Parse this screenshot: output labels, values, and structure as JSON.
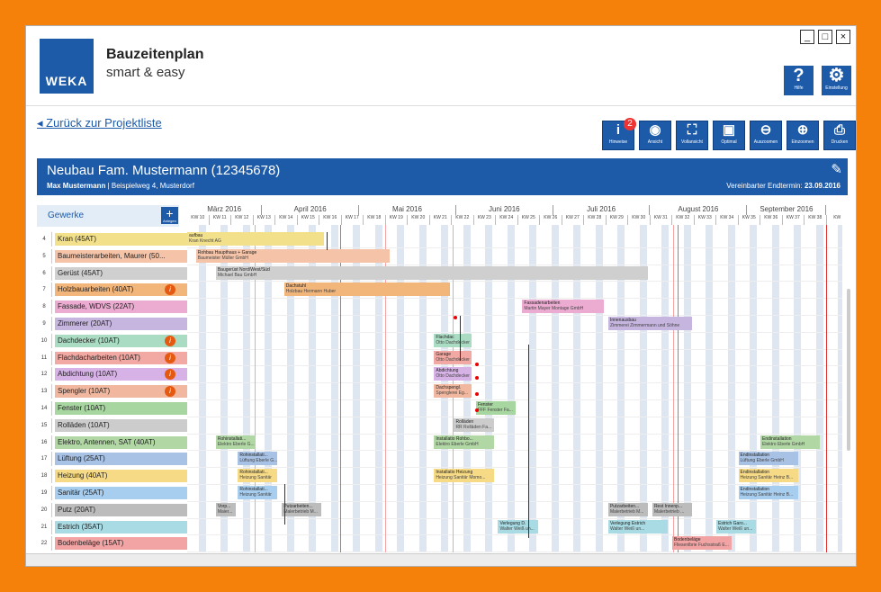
{
  "app": {
    "title": "Bauzeitenplan",
    "subtitle": "smart & easy",
    "logo": "WEKA"
  },
  "window_controls": {
    "minimize": "_",
    "maximize": "□",
    "close": "×"
  },
  "top_buttons": [
    {
      "name": "help",
      "glyph": "?",
      "label": "Hilfe"
    },
    {
      "name": "settings",
      "glyph": "⚙",
      "label": "Einstellung"
    }
  ],
  "back_link": "Zurück zur Projektliste",
  "toolbar": [
    {
      "name": "info",
      "glyph": "i",
      "label": "Hinweise",
      "badge": "2"
    },
    {
      "name": "view",
      "glyph": "◉",
      "label": "Ansicht"
    },
    {
      "name": "full-view",
      "glyph": "⛶",
      "label": "Vollansicht"
    },
    {
      "name": "optimal",
      "glyph": "▣",
      "label": "Optimal"
    },
    {
      "name": "zoom-out",
      "glyph": "⊖",
      "label": "Auszoomen"
    },
    {
      "name": "zoom-in",
      "glyph": "⊕",
      "label": "Einzoomen"
    },
    {
      "name": "print",
      "glyph": "⎙",
      "label": "Drucken"
    }
  ],
  "project": {
    "title": "Neubau Fam. Mustermann (12345678)",
    "owner": "Max Mustermann",
    "address": "| Beispielweg 4, Musterdorf",
    "end_label": "Vereinbarter Endtermin:",
    "end_date": "23.09.2016"
  },
  "gewerke_header": "Gewerke",
  "add_label": "Anlegen",
  "rows": [
    {
      "n": "4",
      "label": "Kran (45AT)",
      "color": "#f3e08a",
      "warn": false
    },
    {
      "n": "5",
      "label": "Baumeisterarbeiten, Maurer (50...",
      "color": "#f4c3a8",
      "warn": false
    },
    {
      "n": "6",
      "label": "Gerüst (45AT)",
      "color": "#cfcfcf",
      "warn": false
    },
    {
      "n": "7",
      "label": "Holzbauarbeiten (40AT)",
      "color": "#f2b57a",
      "warn": true
    },
    {
      "n": "8",
      "label": "Fassade, WDVS (22AT)",
      "color": "#ecacd2",
      "warn": false
    },
    {
      "n": "9",
      "label": "Zimmerer (20AT)",
      "color": "#c6b5df",
      "warn": false
    },
    {
      "n": "10",
      "label": "Dachdecker (10AT)",
      "color": "#a9dcc2",
      "warn": true
    },
    {
      "n": "11",
      "label": "Flachdacharbeiten (10AT)",
      "color": "#f2a9a3",
      "warn": true
    },
    {
      "n": "12",
      "label": "Abdichtung (10AT)",
      "color": "#d7b2e6",
      "warn": true
    },
    {
      "n": "13",
      "label": "Spengler (10AT)",
      "color": "#f1b89f",
      "warn": true
    },
    {
      "n": "14",
      "label": "Fenster (10AT)",
      "color": "#a7d6a0",
      "warn": false
    },
    {
      "n": "15",
      "label": "Rolläden (10AT)",
      "color": "#cccccc",
      "warn": false
    },
    {
      "n": "16",
      "label": "Elektro, Antennen, SAT (40AT)",
      "color": "#b1d8a4",
      "warn": false
    },
    {
      "n": "17",
      "label": "Lüftung (25AT)",
      "color": "#a8c2e6",
      "warn": false
    },
    {
      "n": "18",
      "label": "Heizung (40AT)",
      "color": "#f6da86",
      "warn": false
    },
    {
      "n": "19",
      "label": "Sanitär (25AT)",
      "color": "#a7cdef",
      "warn": false
    },
    {
      "n": "20",
      "label": "Putz (20AT)",
      "color": "#bcbcbc",
      "warn": false
    },
    {
      "n": "21",
      "label": "Estrich (35AT)",
      "color": "#a8dbe3",
      "warn": false
    },
    {
      "n": "22",
      "label": "Bodenbeläge (15AT)",
      "color": "#f2a3a3",
      "warn": false
    }
  ],
  "months": [
    "März 2016",
    "April 2016",
    "Mai 2016",
    "Juni 2016",
    "Juli 2016",
    "August 2016",
    "September 2016"
  ],
  "weeks": [
    "KW 10",
    "KW 11",
    "KW 12",
    "KW 13",
    "KW 14",
    "KW 15",
    "KW 16",
    "KW 17",
    "KW 18",
    "KW 19",
    "KW 20",
    "KW 21",
    "KW 22",
    "KW 23",
    "KW 24",
    "KW 25",
    "KW 26",
    "KW 27",
    "KW 28",
    "KW 29",
    "KW 30",
    "KW 31",
    "KW 32",
    "KW 33",
    "KW 34",
    "KW 35",
    "KW 36",
    "KW 37",
    "KW 38",
    "KW"
  ],
  "tasks": [
    {
      "row": 0,
      "title": "aufbau",
      "sub": "Kran Knecht AG",
      "start": 0,
      "len": 6.2,
      "color": "#f3e08a"
    },
    {
      "row": 1,
      "title": "Rohbau Haupthaus + Garage",
      "sub": "Baumeister Müller GmbH",
      "start": 0.4,
      "len": 8.8,
      "color": "#f4c3a8"
    },
    {
      "row": 2,
      "title": "Baugerüst Nord/West/Süd",
      "sub": "Michael Bau GmbH",
      "start": 1.3,
      "len": 19.6,
      "color": "#cfcfcf"
    },
    {
      "row": 3,
      "title": "Dachstuhl",
      "sub": "Holzbau Hermann Huber",
      "start": 4.4,
      "len": 7.5,
      "color": "#f2b57a"
    },
    {
      "row": 4,
      "title": "Fassadenarbeiten",
      "sub": "Martin Mayer Montage GmbH",
      "start": 15.2,
      "len": 3.7,
      "color": "#ecacd2"
    },
    {
      "row": 5,
      "title": "Innenausbau",
      "sub": "Zimmerei Zimmermann und Söhne",
      "start": 19.1,
      "len": 3.8,
      "color": "#c6b5df"
    },
    {
      "row": 6,
      "title": "Flachdac",
      "sub": "Otto Dachdecker",
      "start": 11.2,
      "len": 1.7,
      "color": "#a9dcc2"
    },
    {
      "row": 7,
      "title": "Garage",
      "sub": "Otto Dachdecker",
      "start": 11.2,
      "len": 1.7,
      "color": "#f2a9a3"
    },
    {
      "row": 8,
      "title": "Abdichtung",
      "sub": "Otto Dachdecker",
      "start": 11.2,
      "len": 1.7,
      "color": "#d7b2e6"
    },
    {
      "row": 9,
      "title": "Dachspengl.",
      "sub": "Spenglerei Eg...",
      "start": 11.2,
      "len": 1.7,
      "color": "#f1b89f"
    },
    {
      "row": 10,
      "title": "Fenster",
      "sub": "FFF Fenster Fa...",
      "start": 13.1,
      "len": 1.8,
      "color": "#a7d6a0"
    },
    {
      "row": 11,
      "title": "Rolläden",
      "sub": "RR Rolläden Fa...",
      "start": 12.1,
      "len": 1.8,
      "color": "#cccccc"
    },
    {
      "row": 12,
      "title": "Rohinstallati...",
      "sub": "Elektro Eberle G...",
      "start": 1.3,
      "len": 1.8,
      "color": "#b1d8a4"
    },
    {
      "row": 12,
      "title": "Installatio Rohbo...",
      "sub": "Elektro Eberle GmbH",
      "start": 11.2,
      "len": 2.7,
      "color": "#b1d8a4"
    },
    {
      "row": 12,
      "title": "Endinstallation",
      "sub": "Elektro Eberle GmbH",
      "start": 26.0,
      "len": 2.7,
      "color": "#b1d8a4"
    },
    {
      "row": 13,
      "title": "Rohinstallati...",
      "sub": "Lüftung Eberle G...",
      "start": 2.3,
      "len": 1.8,
      "color": "#a8c2e6"
    },
    {
      "row": 13,
      "title": "Endinstallation",
      "sub": "Lüftung Eberle GmbH",
      "start": 25.0,
      "len": 2.7,
      "color": "#a8c2e6"
    },
    {
      "row": 14,
      "title": "Rohinstallati...",
      "sub": "Heizung Sanitär",
      "start": 2.3,
      "len": 1.8,
      "color": "#f6da86"
    },
    {
      "row": 14,
      "title": "Installatio Heizung",
      "sub": "Heizung Sanitär Momo...",
      "start": 11.2,
      "len": 2.7,
      "color": "#f6da86"
    },
    {
      "row": 14,
      "title": "Endinstallation",
      "sub": "Heizung Sanitär Heinz B...",
      "start": 25.0,
      "len": 2.7,
      "color": "#f6da86"
    },
    {
      "row": 15,
      "title": "Rohinstallati...",
      "sub": "Heizung Sanitär",
      "start": 2.3,
      "len": 1.8,
      "color": "#a7cdef"
    },
    {
      "row": 15,
      "title": "Endinstallation",
      "sub": "Heizung Sanitär Heinz B...",
      "start": 25.0,
      "len": 2.7,
      "color": "#a7cdef"
    },
    {
      "row": 16,
      "title": "Vorp...",
      "sub": "Maier...",
      "start": 1.3,
      "len": 0.9,
      "color": "#bcbcbc"
    },
    {
      "row": 16,
      "title": "Putzarbeiten...",
      "sub": "Malerbetrieb M...",
      "start": 4.3,
      "len": 1.8,
      "color": "#bcbcbc"
    },
    {
      "row": 16,
      "title": "Putzarbeiten...",
      "sub": "Malerbetrieb M...",
      "start": 19.1,
      "len": 1.8,
      "color": "#bcbcbc"
    },
    {
      "row": 16,
      "title": "Rest Innenp...",
      "sub": "Malerbetrieb ...",
      "start": 21.1,
      "len": 1.8,
      "color": "#bcbcbc"
    },
    {
      "row": 17,
      "title": "Verlegung D.",
      "sub": "Walter Weiß un...",
      "start": 14.1,
      "len": 1.8,
      "color": "#a8dbe3"
    },
    {
      "row": 17,
      "title": "Verlegung Estrich",
      "sub": "Walter Weiß un...",
      "start": 19.1,
      "len": 2.7,
      "color": "#a8dbe3"
    },
    {
      "row": 17,
      "title": "Estrich Garo...",
      "sub": "Walter Weiß un...",
      "start": 24.0,
      "len": 1.8,
      "color": "#a8dbe3"
    },
    {
      "row": 18,
      "title": "Bodenbeläge",
      "sub": "Fliesenlbrie Fuchsstraß E...",
      "start": 22.0,
      "len": 2.7,
      "color": "#f2a3a3"
    }
  ]
}
